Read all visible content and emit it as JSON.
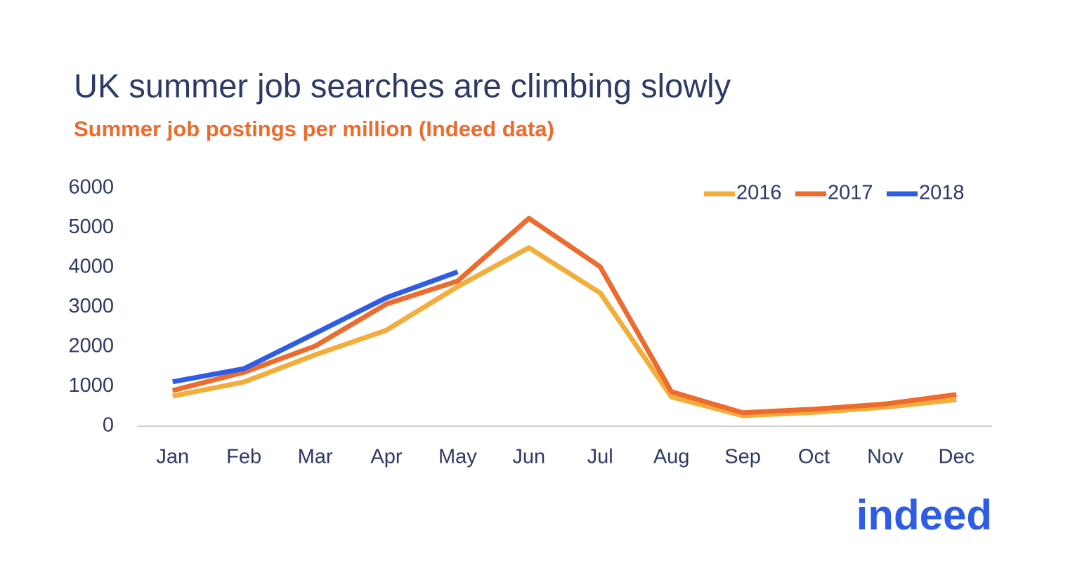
{
  "chart_data": {
    "type": "line",
    "title": "UK summer job searches are climbing slowly",
    "subtitle": "Summer job postings per million (Indeed data)",
    "categories": [
      "Jan",
      "Feb",
      "Mar",
      "Apr",
      "May",
      "Jun",
      "Jul",
      "Aug",
      "Sep",
      "Oct",
      "Nov",
      "Dec"
    ],
    "series": [
      {
        "name": "2016",
        "color": "#f2ad3b",
        "values": [
          760,
          1115,
          1800,
          2420,
          3520,
          4500,
          3360,
          740,
          265,
          350,
          480,
          670
        ]
      },
      {
        "name": "2017",
        "color": "#ec6b2d",
        "values": [
          900,
          1360,
          2020,
          3080,
          3660,
          5240,
          4020,
          870,
          340,
          430,
          560,
          800
        ]
      },
      {
        "name": "2018",
        "color": "#2e5ce6",
        "values": [
          1120,
          1450,
          2340,
          3240,
          3890,
          null,
          null,
          null,
          null,
          null,
          null,
          null
        ]
      }
    ],
    "ylim": [
      0,
      6000
    ],
    "yticks": [
      0,
      1000,
      2000,
      3000,
      4000,
      5000,
      6000
    ],
    "grid": false,
    "legend": "top-right"
  },
  "logo": "indeed"
}
